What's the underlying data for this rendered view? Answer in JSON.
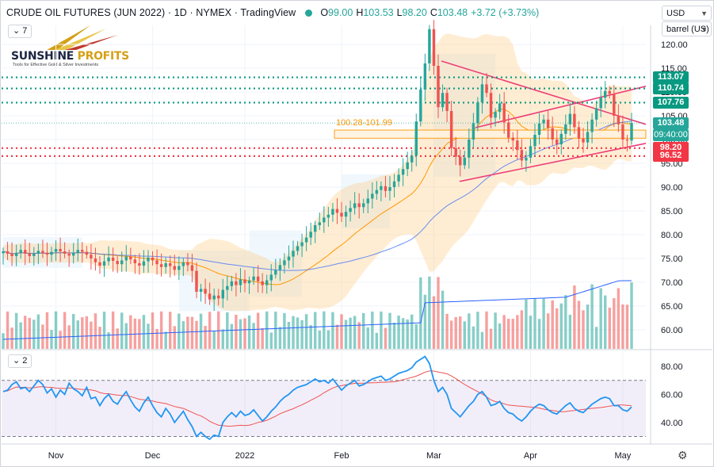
{
  "header": {
    "title": "CRUDE OIL FUTURES (JUN 2022) · 1D · NYMEX · TradingView",
    "open_key": "O",
    "open": "99.00",
    "high_key": "H",
    "high": "103.53",
    "low_key": "L",
    "low": "98.20",
    "close_key": "C",
    "close": "103.48",
    "change": "+3.72 (+3.73%)"
  },
  "indicators_badge": "7",
  "rsi_badge": "2",
  "controls": {
    "currency": "USD",
    "unit": "barrel (US)"
  },
  "logo": {
    "name_part1": "SUNSHINE",
    "name_part2": "PROFITS",
    "tagline": "Tools for Effective Gold & Silver Investments"
  },
  "colors": {
    "bull": "#26a69a",
    "bear": "#ef5350",
    "accent": "#2962ff",
    "resistance": "#089981",
    "support": "#f23645"
  },
  "chart_data": {
    "type": "candlestick",
    "title": "Crude Oil Futures (Jun 2022) 1D NYMEX",
    "price_axis": {
      "ticks": [
        "120.00",
        "115.00",
        "110.00",
        "105.00",
        "100.00",
        "95.00",
        "90.00",
        "85.00",
        "80.00",
        "75.00",
        "70.00",
        "65.00",
        "60.00"
      ],
      "range": [
        55,
        122
      ]
    },
    "x_axis": {
      "labels": [
        "Nov",
        "Dec",
        "2022",
        "Feb",
        "Mar",
        "Apr",
        "May"
      ]
    },
    "price_levels": [
      {
        "value": 113.07,
        "label": "113.07",
        "kind": "resistance"
      },
      {
        "value": 110.74,
        "label": "110.74",
        "kind": "resistance"
      },
      {
        "value": 107.76,
        "label": "107.76",
        "kind": "resistance"
      },
      {
        "value": 98.2,
        "label": "98.20",
        "kind": "support"
      },
      {
        "value": 96.52,
        "label": "96.52",
        "kind": "support"
      }
    ],
    "last_price": {
      "value": 103.48,
      "label": "103.48",
      "countdown": "09:40:00"
    },
    "zone": {
      "label": "100.28-101.99",
      "low": 100.28,
      "high": 101.99
    },
    "triangle": {
      "start": "Mar",
      "apex": "May"
    },
    "closes": [
      76.5,
      76,
      75.5,
      76.2,
      76.8,
      76,
      75.5,
      76,
      76.6,
      76.2,
      75.8,
      76.4,
      77,
      76.5,
      76,
      75.6,
      76.2,
      76.8,
      76.4,
      75.8,
      75,
      74.2,
      73.5,
      74.4,
      75.2,
      74.5,
      73.8,
      74.6,
      75.4,
      74.8,
      74,
      73.5,
      74.4,
      75.2,
      74.6,
      73.8,
      73.2,
      74,
      73.4,
      72.6,
      73.4,
      74.2,
      73.6,
      72.4,
      68,
      68.6,
      67.6,
      66.4,
      67.2,
      66.6,
      68.4,
      69.2,
      70.2,
      69.4,
      70.6,
      69.8,
      70.4,
      71.2,
      70.2,
      69.4,
      70.4,
      71.6,
      72.6,
      73.6,
      74.6,
      75.4,
      76.6,
      77.6,
      78.4,
      79.4,
      80.6,
      82,
      82.6,
      83.6,
      84.2,
      85.4,
      84.6,
      83.8,
      84.8,
      85.6,
      86.6,
      85.8,
      86.6,
      87.6,
      88.6,
      89.4,
      90.2,
      89.2,
      90,
      91.2,
      92.6,
      93.8,
      95.2,
      96.6,
      103.8,
      110.5,
      116,
      123.2,
      115.5,
      106.8,
      109.8,
      106,
      98.2,
      96.4,
      94.6,
      96.2,
      100,
      103.4,
      107.8,
      111.6,
      109.8,
      104.6,
      105.8,
      107.6,
      103.6,
      100.4,
      99.8,
      97.8,
      95.6,
      96.2,
      98.6,
      101,
      103.4,
      104.2,
      102.4,
      100,
      99,
      101.2,
      103.2,
      105.4,
      102.6,
      100.2,
      99.4,
      101.6,
      104.2,
      106.6,
      108.8,
      110.2,
      109.6,
      105,
      103.2,
      100,
      99.8,
      103.48
    ],
    "volume": {
      "max_label": "",
      "values_scale": [
        0,
        1
      ]
    },
    "rsi": {
      "ticks": [
        "80.00",
        "60.00",
        "40.00"
      ],
      "range": [
        25,
        88
      ],
      "upper": 70,
      "lower": 30,
      "values": [
        62,
        63,
        67,
        69,
        64,
        65,
        62,
        66,
        70,
        67,
        61,
        64,
        58,
        63,
        60,
        68,
        64,
        62,
        59,
        65,
        57,
        58,
        52,
        57,
        60,
        55,
        53,
        58,
        62,
        56,
        51,
        48,
        54,
        58,
        52,
        47,
        44,
        50,
        46,
        40,
        44,
        48,
        42,
        37,
        30,
        33,
        30,
        28,
        31,
        30,
        40,
        44,
        47,
        44,
        48,
        45,
        46,
        49,
        45,
        41,
        44,
        48,
        51,
        55,
        58,
        60,
        63,
        65,
        66,
        67,
        69,
        71,
        69,
        70,
        68,
        71,
        67,
        63,
        66,
        68,
        70,
        66,
        67,
        69,
        71,
        72,
        73,
        70,
        71,
        73,
        75,
        76,
        77,
        79,
        83,
        85,
        87,
        82,
        70,
        62,
        65,
        60,
        50,
        47,
        44,
        48,
        52,
        55,
        60,
        62,
        58,
        52,
        53,
        55,
        50,
        47,
        46,
        43,
        41,
        44,
        48,
        51,
        53,
        52,
        49,
        47,
        46,
        49,
        52,
        54,
        50,
        48,
        47,
        50,
        53,
        55,
        57,
        58,
        57,
        52,
        52,
        49,
        48,
        51
      ]
    }
  }
}
